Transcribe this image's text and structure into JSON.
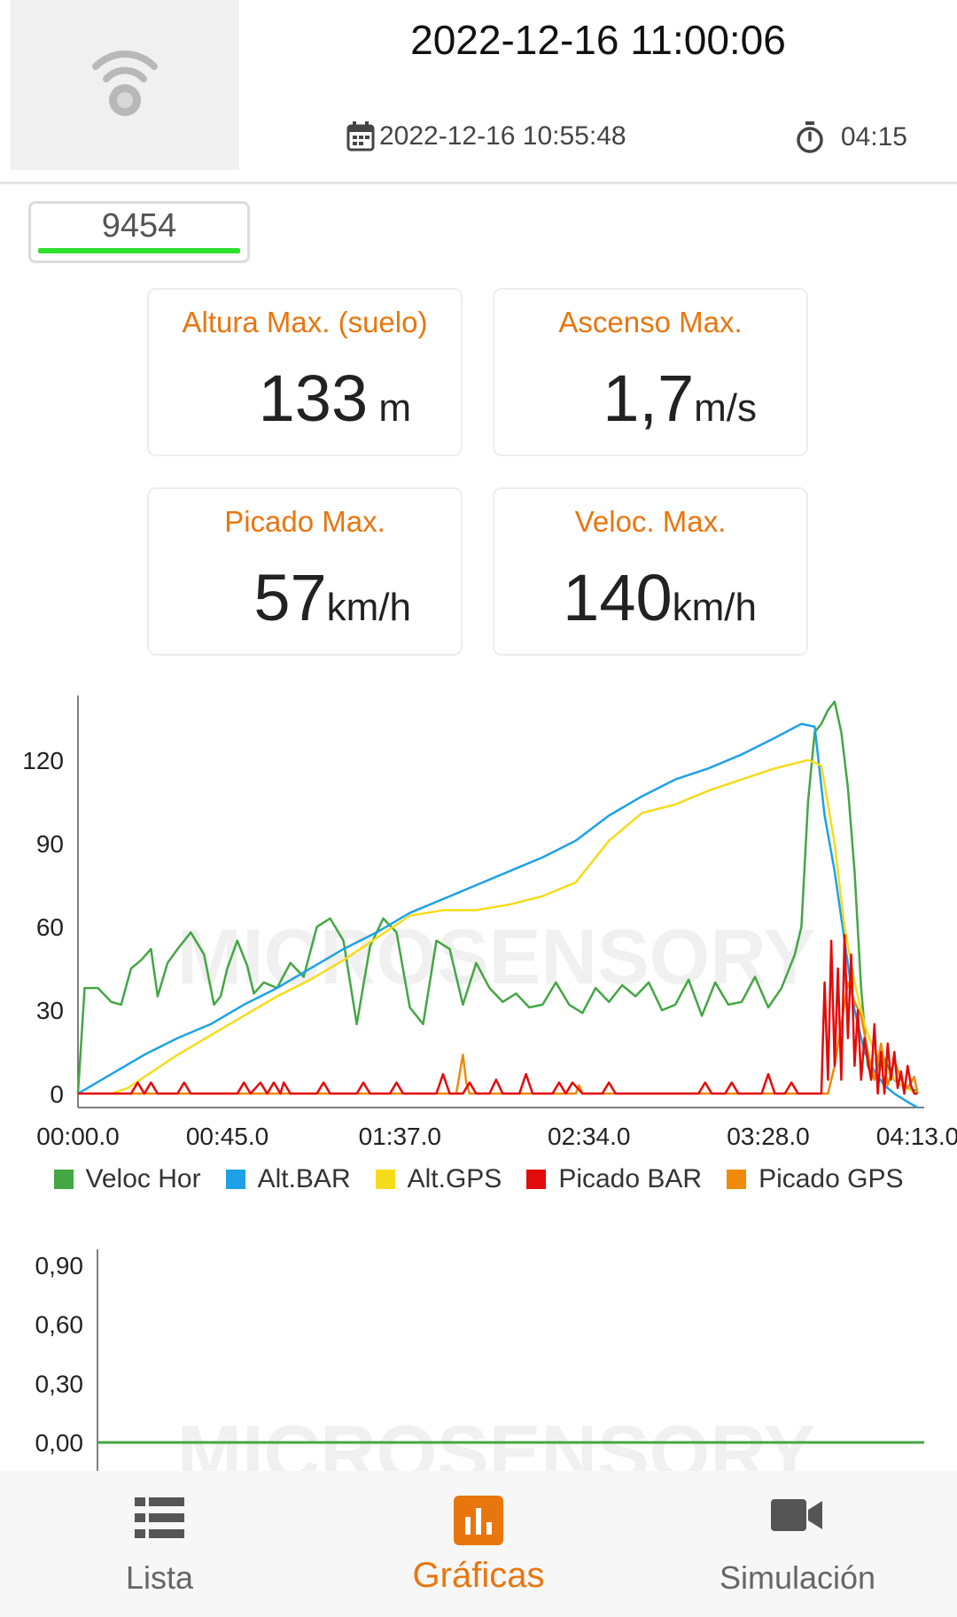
{
  "header": {
    "timestamp": "2022-12-16 11:00:06",
    "start_time": "2022-12-16 10:55:48",
    "duration": "04:15",
    "device_id": "9454"
  },
  "stats": [
    {
      "label": "Altura Max. (suelo)",
      "value": "133",
      "unit": " m"
    },
    {
      "label": "Ascenso Max.",
      "value": "1,7",
      "unit": "m/s"
    },
    {
      "label": "Picado Max.",
      "value": "57",
      "unit": "km/h"
    },
    {
      "label": "Veloc. Max.",
      "value": "140",
      "unit": "km/h"
    }
  ],
  "colors": {
    "accent": "#e8760f",
    "veloc_hor": "#43a743",
    "alt_bar": "#1ea1e6",
    "alt_gps": "#f6db1b",
    "picado_bar": "#e30b0b",
    "picado_gps": "#f08a0a"
  },
  "chart_data": [
    {
      "type": "line",
      "x_tick_labels": [
        "00:00.0",
        "00:45.0",
        "01:37.0",
        "02:34.0",
        "03:28.0",
        "04:13.0"
      ],
      "x_ticks_seconds": [
        0,
        45,
        97,
        154,
        208,
        253
      ],
      "xlim": [
        0,
        255
      ],
      "ylim": [
        -5,
        140
      ],
      "y_ticks": [
        0,
        30,
        60,
        90,
        120
      ],
      "legend_position": "bottom",
      "grid": false,
      "series": [
        {
          "name": "Veloc Hor",
          "color": "#43a743",
          "x": [
            0,
            2,
            6,
            10,
            13,
            16,
            19,
            22,
            24,
            27,
            30,
            34,
            38,
            41,
            43,
            45,
            48,
            51,
            53,
            56,
            60,
            64,
            68,
            72,
            76,
            80,
            84,
            88,
            92,
            96,
            100,
            104,
            108,
            112,
            116,
            120,
            124,
            128,
            132,
            136,
            140,
            144,
            148,
            152,
            156,
            160,
            164,
            168,
            172,
            176,
            180,
            184,
            188,
            192,
            196,
            200,
            204,
            208,
            212,
            216,
            218,
            220,
            222,
            224,
            226,
            228,
            230,
            232,
            234,
            236,
            238,
            240,
            242,
            244,
            246,
            248,
            250,
            253
          ],
          "values": [
            0,
            38,
            38,
            33,
            32,
            45,
            48,
            52,
            35,
            47,
            52,
            58,
            50,
            32,
            35,
            45,
            55,
            46,
            36,
            40,
            38,
            47,
            42,
            60,
            63,
            55,
            25,
            53,
            63,
            58,
            31,
            25,
            55,
            52,
            32,
            47,
            38,
            33,
            36,
            31,
            32,
            40,
            32,
            29,
            38,
            33,
            39,
            35,
            40,
            30,
            32,
            41,
            28,
            40,
            32,
            33,
            42,
            31,
            38,
            50,
            60,
            105,
            130,
            133,
            138,
            141,
            130,
            110,
            80,
            38,
            10,
            5,
            15,
            10,
            5,
            3,
            2,
            1
          ]
        },
        {
          "name": "Alt.BAR",
          "color": "#1ea1e6",
          "x": [
            0,
            10,
            20,
            30,
            40,
            50,
            60,
            70,
            80,
            90,
            100,
            110,
            120,
            130,
            140,
            150,
            160,
            170,
            180,
            190,
            200,
            210,
            218,
            222,
            225,
            228,
            231,
            234,
            237,
            240,
            243,
            246,
            250,
            253
          ],
          "values": [
            0,
            7,
            14,
            20,
            25,
            32,
            38,
            45,
            52,
            58,
            65,
            70,
            75,
            80,
            85,
            91,
            100,
            107,
            113,
            117,
            122,
            128,
            133,
            132,
            100,
            80,
            55,
            30,
            15,
            8,
            3,
            0,
            -3,
            -5
          ]
        },
        {
          "name": "Alt.GPS",
          "color": "#f6db1b",
          "x": [
            0,
            10,
            15,
            20,
            30,
            40,
            50,
            60,
            70,
            80,
            90,
            100,
            110,
            120,
            130,
            140,
            150,
            160,
            170,
            180,
            190,
            200,
            210,
            220,
            224,
            228,
            231,
            234,
            237,
            240,
            244,
            248,
            253
          ],
          "values": [
            0,
            0,
            2,
            6,
            14,
            21,
            28,
            35,
            41,
            48,
            56,
            64,
            66,
            66,
            68,
            71,
            76,
            91,
            101,
            104,
            109,
            113,
            117,
            120,
            118,
            90,
            60,
            40,
            25,
            15,
            8,
            3,
            0
          ]
        },
        {
          "name": "Picado BAR",
          "color": "#e30b0b",
          "x": [
            0,
            16,
            18,
            20,
            22,
            24,
            30,
            32,
            34,
            48,
            50,
            52,
            55,
            57,
            59,
            61,
            62,
            64,
            72,
            74,
            76,
            84,
            86,
            88,
            94,
            96,
            98,
            108,
            110,
            112,
            116,
            118,
            120,
            124,
            126,
            128,
            133,
            135,
            137,
            143,
            145,
            147,
            149,
            152,
            158,
            160,
            162,
            187,
            189,
            191,
            195,
            197,
            199,
            206,
            208,
            210,
            213,
            215,
            217,
            221,
            224,
            225,
            226,
            227,
            228,
            229,
            230,
            231,
            232,
            233,
            234,
            235,
            236,
            237,
            238,
            239,
            240,
            241,
            242,
            243,
            244,
            245,
            246,
            247,
            248,
            249,
            250,
            251,
            252,
            253
          ],
          "values": [
            0,
            0,
            4,
            0,
            4,
            0,
            0,
            4,
            0,
            0,
            4,
            0,
            4,
            0,
            4,
            0,
            4,
            0,
            0,
            4,
            0,
            0,
            4,
            0,
            0,
            4,
            0,
            0,
            7,
            0,
            0,
            4,
            0,
            0,
            5,
            0,
            0,
            7,
            0,
            0,
            4,
            0,
            4,
            0,
            0,
            4,
            0,
            0,
            4,
            0,
            0,
            4,
            0,
            0,
            7,
            0,
            0,
            4,
            0,
            0,
            0,
            40,
            5,
            55,
            10,
            45,
            5,
            57,
            20,
            50,
            10,
            30,
            5,
            20,
            12,
            5,
            25,
            0,
            15,
            0,
            18,
            5,
            15,
            2,
            8,
            0,
            10,
            3,
            0,
            0
          ]
        },
        {
          "name": "Picado GPS",
          "color": "#f08a0a",
          "x": [
            0,
            114,
            115,
            116,
            117,
            118,
            150,
            151,
            152,
            226,
            228,
            230,
            232,
            234,
            236,
            238,
            240,
            242,
            244,
            246,
            248,
            250,
            252,
            253
          ],
          "values": [
            0,
            0,
            7,
            14,
            4,
            0,
            0,
            3,
            0,
            0,
            10,
            25,
            40,
            33,
            28,
            15,
            5,
            18,
            3,
            12,
            5,
            2,
            6,
            0
          ]
        }
      ]
    },
    {
      "type": "line",
      "y_tick_labels": [
        "0,90",
        "0,60",
        "0,30",
        "0,00"
      ],
      "y_ticks": [
        0.9,
        0.6,
        0.3,
        0.0
      ],
      "ylim": [
        0,
        1
      ],
      "grid": false,
      "series": [
        {
          "color": "#43a743",
          "x": [
            0,
            253
          ],
          "values": [
            0,
            0
          ]
        }
      ]
    }
  ],
  "nav": {
    "items": [
      {
        "label": "Lista",
        "icon": "list-icon"
      },
      {
        "label": "Gráficas",
        "icon": "bar-chart-icon"
      },
      {
        "label": "Simulación",
        "icon": "video-camera-icon"
      }
    ]
  }
}
